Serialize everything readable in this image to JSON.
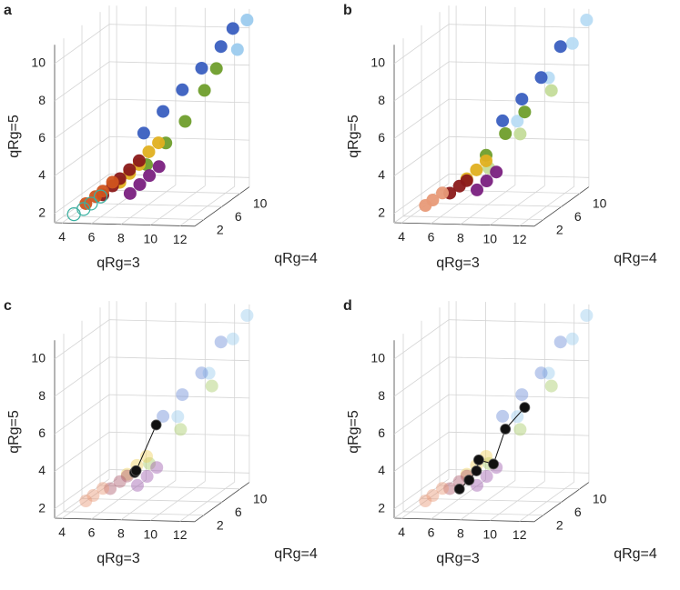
{
  "chart_data": [
    {
      "type": "scatter3d",
      "label": "a",
      "xlabel": "qRg=3",
      "ylabel": "qRg=4",
      "zlabel": "qRg=5",
      "xlim": [
        3.5,
        13
      ],
      "ylim": [
        0,
        12
      ],
      "zlim": [
        1.5,
        11
      ],
      "xticks": [
        4,
        6,
        8,
        10,
        12
      ],
      "yticks": [
        2,
        6,
        10
      ],
      "zticks": [
        2,
        4,
        6,
        8,
        10
      ],
      "grid": true,
      "marker_alpha": 0.95,
      "series": [
        {
          "color": "#9ccbee",
          "x": [
            12.5,
            13
          ],
          "y": [
            11,
            11.5
          ],
          "z": [
            9,
            10.5
          ]
        },
        {
          "color": "#6f9e2c",
          "x": [
            8.5,
            9.5,
            10.5,
            11.5,
            12
          ],
          "y": [
            4,
            5,
            6,
            7,
            8
          ],
          "z": [
            4,
            5,
            6,
            7.5,
            8.5
          ]
        },
        {
          "color": "#3a5fc0",
          "x": [
            8,
            9,
            10,
            11,
            12,
            12.5
          ],
          "y": [
            5,
            6,
            7,
            8,
            9,
            10
          ],
          "z": [
            5.5,
            6.5,
            7.5,
            8.5,
            9.5,
            10.3
          ]
        },
        {
          "color": "#7a2080",
          "x": [
            8,
            8.5,
            9,
            9.5
          ],
          "y": [
            2,
            2.5,
            3,
            3.5
          ],
          "z": [
            2.8,
            3.2,
            3.6,
            4
          ]
        },
        {
          "color": "#e0b020",
          "x": [
            7,
            7.5,
            8,
            8.5,
            9
          ],
          "y": [
            3,
            3.5,
            4,
            4.5,
            5
          ],
          "z": [
            3.2,
            3.6,
            4,
            4.6,
            5
          ]
        },
        {
          "color": "#8b1a1a",
          "x": [
            6,
            6.5,
            7,
            7.5,
            8
          ],
          "y": [
            2.5,
            3,
            3,
            3.5,
            4
          ],
          "z": [
            2.6,
            3,
            3.4,
            3.8,
            4.2
          ]
        },
        {
          "color": "#d0541e",
          "x": [
            5,
            5.5,
            6,
            6.5
          ],
          "y": [
            2,
            2.5,
            2.5,
            3
          ],
          "z": [
            2.2,
            2.5,
            2.8,
            3.2
          ]
        },
        {
          "color": "#3ab0a0",
          "hollow": true,
          "x": [
            4.5,
            5,
            5.5,
            6
          ],
          "y": [
            1,
            1.5,
            1.5,
            2
          ],
          "z": [
            1.8,
            2,
            2.3,
            2.6
          ]
        }
      ]
    },
    {
      "type": "scatter3d",
      "label": "b",
      "xlabel": "qRg=3",
      "ylabel": "qRg=4",
      "zlabel": "qRg=5",
      "xlim": [
        3.5,
        13
      ],
      "ylim": [
        0,
        12
      ],
      "zlim": [
        1.5,
        11
      ],
      "xticks": [
        4,
        6,
        8,
        10,
        12
      ],
      "yticks": [
        2,
        6,
        10
      ],
      "zticks": [
        2,
        4,
        6,
        8,
        10
      ],
      "grid": true,
      "marker_alpha": 0.95,
      "series": [
        {
          "color": "#b8dcf4",
          "x": [
            10,
            11.5,
            12.5,
            13
          ],
          "y": [
            6,
            8,
            10,
            11.5
          ],
          "z": [
            6,
            8,
            9.5,
            10.5
          ]
        },
        {
          "color": "#c4dc9a",
          "x": [
            9,
            10.5,
            12
          ],
          "y": [
            3,
            5,
            7
          ],
          "z": [
            4,
            5.5,
            7.5
          ]
        },
        {
          "color": "#6f9e2c",
          "x": [
            8.5,
            9.5,
            10.5
          ],
          "y": [
            4,
            5,
            6
          ],
          "z": [
            4.5,
            5.5,
            6.5
          ]
        },
        {
          "color": "#3a5fc0",
          "x": [
            9,
            10,
            11,
            12
          ],
          "y": [
            6,
            7,
            8,
            9
          ],
          "z": [
            6,
            7,
            8,
            9.5
          ]
        },
        {
          "color": "#7a2080",
          "x": [
            8.5,
            9,
            9.5
          ],
          "y": [
            2,
            2.5,
            3
          ],
          "z": [
            3,
            3.4,
            3.8
          ]
        },
        {
          "color": "#e0b020",
          "x": [
            7.5,
            8,
            8.5
          ],
          "y": [
            3,
            3.5,
            4
          ],
          "z": [
            3.4,
            3.8,
            4.2
          ]
        },
        {
          "color": "#8b1a1a",
          "x": [
            6.5,
            7,
            7.5
          ],
          "y": [
            2.5,
            3,
            3
          ],
          "z": [
            2.7,
            3,
            3.3
          ]
        },
        {
          "color": "#e89a78",
          "x": [
            5,
            5.5,
            6
          ],
          "y": [
            2,
            2,
            2.5
          ],
          "z": [
            2.1,
            2.4,
            2.7
          ]
        }
      ]
    },
    {
      "type": "scatter3d",
      "label": "c",
      "xlabel": "qRg=3",
      "ylabel": "qRg=4",
      "zlabel": "qRg=5",
      "xlim": [
        3.5,
        13
      ],
      "ylim": [
        0,
        12
      ],
      "zlim": [
        1.5,
        11
      ],
      "xticks": [
        4,
        6,
        8,
        10,
        12
      ],
      "yticks": [
        2,
        6,
        10
      ],
      "zticks": [
        2,
        4,
        6,
        8,
        10
      ],
      "grid": true,
      "marker_alpha": 0.45,
      "series": [
        {
          "color": "#9ccbee",
          "x": [
            10,
            11.5,
            12.5,
            13
          ],
          "y": [
            6,
            8,
            10,
            11.5
          ],
          "z": [
            6,
            8,
            9.5,
            10.5
          ]
        },
        {
          "color": "#a8cc6a",
          "x": [
            9,
            10.5,
            12
          ],
          "y": [
            3,
            5,
            7
          ],
          "z": [
            4,
            5.5,
            7.5
          ]
        },
        {
          "color": "#6f8fd8",
          "x": [
            9,
            10,
            11,
            12
          ],
          "y": [
            6,
            7,
            8,
            9
          ],
          "z": [
            6,
            7,
            8,
            9.5
          ]
        },
        {
          "color": "#a060b0",
          "x": [
            8.5,
            9,
            9.5
          ],
          "y": [
            2,
            2.5,
            3
          ],
          "z": [
            3,
            3.4,
            3.8
          ]
        },
        {
          "color": "#f0d060",
          "x": [
            7.5,
            8,
            8.5
          ],
          "y": [
            3,
            3.5,
            4
          ],
          "z": [
            3.4,
            3.8,
            4.2
          ]
        },
        {
          "color": "#b06070",
          "x": [
            6.5,
            7,
            7.5
          ],
          "y": [
            2.5,
            3,
            3
          ],
          "z": [
            2.7,
            3,
            3.3
          ]
        },
        {
          "color": "#e89a78",
          "x": [
            5,
            5.5,
            6
          ],
          "y": [
            2,
            2,
            2.5
          ],
          "z": [
            2.1,
            2.4,
            2.7
          ]
        }
      ],
      "trajectory": {
        "color": "#111111",
        "x": [
          8,
          8.1,
          9
        ],
        "y": [
          3,
          3,
          4.5
        ],
        "z": [
          3.5,
          3.6,
          5.8
        ]
      }
    },
    {
      "type": "scatter3d",
      "label": "d",
      "xlabel": "qRg=3",
      "ylabel": "qRg=4",
      "zlabel": "qRg=5",
      "xlim": [
        3.5,
        13
      ],
      "ylim": [
        0,
        12
      ],
      "zlim": [
        1.5,
        11
      ],
      "xticks": [
        4,
        6,
        8,
        10,
        12
      ],
      "yticks": [
        2,
        6,
        10
      ],
      "zticks": [
        2,
        4,
        6,
        8,
        10
      ],
      "grid": true,
      "marker_alpha": 0.45,
      "series": [
        {
          "color": "#9ccbee",
          "x": [
            10,
            11.5,
            12.5,
            13
          ],
          "y": [
            6,
            8,
            10,
            11.5
          ],
          "z": [
            6,
            8,
            9.5,
            10.5
          ]
        },
        {
          "color": "#a8cc6a",
          "x": [
            9,
            10.5,
            12
          ],
          "y": [
            3,
            5,
            7
          ],
          "z": [
            4,
            5.5,
            7.5
          ]
        },
        {
          "color": "#6f8fd8",
          "x": [
            9,
            10,
            11,
            12
          ],
          "y": [
            6,
            7,
            8,
            9
          ],
          "z": [
            6,
            7,
            8,
            9.5
          ]
        },
        {
          "color": "#a060b0",
          "x": [
            8.5,
            9,
            9.5
          ],
          "y": [
            2,
            2.5,
            3
          ],
          "z": [
            3,
            3.4,
            3.8
          ]
        },
        {
          "color": "#f0d060",
          "x": [
            7.5,
            8,
            8.5
          ],
          "y": [
            3,
            3.5,
            4
          ],
          "z": [
            3.4,
            3.8,
            4.2
          ]
        },
        {
          "color": "#b06070",
          "x": [
            6.5,
            7,
            7.5
          ],
          "y": [
            2.5,
            3,
            3
          ],
          "z": [
            2.7,
            3,
            3.3
          ]
        },
        {
          "color": "#e89a78",
          "x": [
            5,
            5.5,
            6
          ],
          "y": [
            2,
            2,
            2.5
          ],
          "z": [
            2.1,
            2.4,
            2.7
          ]
        }
      ],
      "trajectory": {
        "color": "#111111",
        "x": [
          7,
          7.5,
          8,
          8,
          9,
          9.5,
          10.5
        ],
        "y": [
          3,
          3.5,
          3.5,
          4,
          4,
          5,
          6
        ],
        "z": [
          2.6,
          3,
          3.5,
          4,
          3.8,
          5.5,
          6.5
        ]
      }
    }
  ]
}
